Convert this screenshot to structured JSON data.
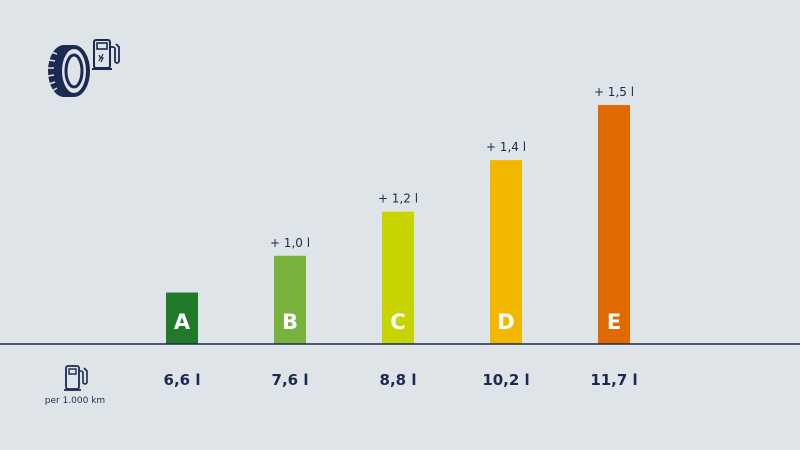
{
  "chart_data": {
    "type": "bar",
    "categories": [
      "A",
      "B",
      "C",
      "D",
      "E"
    ],
    "values": [
      6.6,
      7.6,
      8.8,
      10.2,
      11.7
    ],
    "value_labels": [
      "6,6 l",
      "7,6 l",
      "8,8 l",
      "10,2 l",
      "11,7 l"
    ],
    "increments": [
      "",
      "+ 1,0 l",
      "+ 1,2 l",
      "+ 1,4 l",
      "+ 1,5 l"
    ],
    "colors": [
      "#217a2a",
      "#76b23c",
      "#c8d400",
      "#f2b800",
      "#e06a00"
    ],
    "ylim": [
      5.2,
      11.7
    ],
    "grid": false,
    "legend": "none"
  },
  "labels": {
    "unit_caption": "per 1.000 km"
  },
  "icons": {
    "tire": "tire-icon",
    "fuel_pump_header": "fuel-pump-icon",
    "fuel_pump_row": "fuel-pump-icon"
  },
  "colors": {
    "background": "#dfe4e8",
    "text": "#1a2a52",
    "baseline": "#1a2a52"
  }
}
